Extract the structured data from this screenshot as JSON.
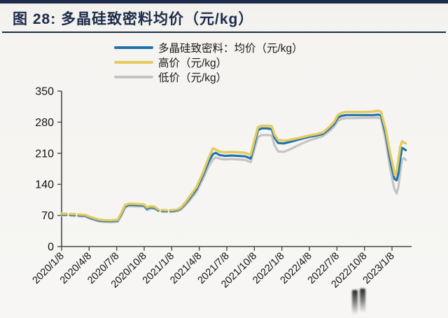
{
  "page": {
    "top_bar_color": "#1c2b4a",
    "background": "#f4f3f0"
  },
  "header": {
    "title": "图 28: 多晶硅致密料均价（元/kg）",
    "title_color": "#1c2b4a",
    "divider_color": "#1c2b4a"
  },
  "legend": {
    "items": [
      {
        "label": "多晶硅致密料：均价（元/kg）",
        "color": "#2273aa",
        "key": "avg"
      },
      {
        "label": "高价（元/kg）",
        "color": "#e3cb5e",
        "key": "high"
      },
      {
        "label": "低价（元/kg）",
        "color": "#c4c4c4",
        "key": "low"
      }
    ]
  },
  "chart_data": {
    "type": "line",
    "title": "多晶硅致密料均价（元/kg）",
    "ylabel": "",
    "xlabel": "",
    "ylim": [
      0,
      350
    ],
    "yticks": [
      0,
      70,
      140,
      210,
      280,
      350
    ],
    "xtick_labels": [
      "2020/1/8",
      "2020/4/8",
      "2020/7/8",
      "2020/10/8",
      "2021/1/8",
      "2021/4/8",
      "2021/7/8",
      "2021/10/8",
      "2022/1/8",
      "2022/4/8",
      "2022/7/8",
      "2022/10/8",
      "2023/1/8"
    ],
    "x_unit": "months since 2020/1/8, one tick every 3 months",
    "grid": false,
    "legend_position": "top",
    "axis_color": "#4a4a4a",
    "tick_label_color": "#111111",
    "dashed_ranges": [
      [
        0,
        2.6
      ],
      [
        10.1,
        12.6
      ]
    ],
    "x_months": [
      0.0,
      0.7,
      1.4,
      2.1,
      2.6,
      3.2,
      4.0,
      4.6,
      5.4,
      6.1,
      6.5,
      6.9,
      7.3,
      8.0,
      8.8,
      9.0,
      9.3,
      9.6,
      10.1,
      10.6,
      11.2,
      12.0,
      12.6,
      13.0,
      13.5,
      14.0,
      14.7,
      15.4,
      16.0,
      16.5,
      16.8,
      17.2,
      17.8,
      18.5,
      19.3,
      20.0,
      20.6,
      21.0,
      21.4,
      21.8,
      22.4,
      22.9,
      23.2,
      23.6,
      24.2,
      24.8,
      25.5,
      26.2,
      27.0,
      27.8,
      28.5,
      29.0,
      29.4,
      29.7,
      30.1,
      30.5,
      31.0,
      32.0,
      33.0,
      34.0,
      34.5,
      34.8,
      35.3,
      35.8,
      36.2,
      36.3,
      36.5,
      36.7,
      36.9,
      37.1,
      37.3,
      37.5
    ],
    "series": [
      {
        "name": "低价（元/kg）",
        "key": "low",
        "color": "#c4c4c4",
        "width": 3.2,
        "values": [
          70,
          70,
          69,
          68,
          67,
          62,
          57,
          55.5,
          55,
          56,
          69,
          87,
          91,
          90.5,
          90,
          89.5,
          82,
          85,
          85,
          79,
          78,
          78,
          79.5,
          83,
          93,
          105,
          123,
          152,
          180,
          196,
          201,
          198,
          196,
          197,
          196,
          195,
          190,
          218,
          246,
          251,
          251,
          250,
          228,
          214,
          213,
          218,
          225,
          232,
          239,
          244,
          249,
          257,
          264,
          270,
          283,
          287,
          289,
          289,
          290,
          290,
          290,
          288,
          240,
          175,
          135,
          128,
          119,
          135,
          168,
          196,
          199,
          195
        ]
      },
      {
        "name": "多晶硅致密料：均价（元/kg）",
        "key": "avg",
        "color": "#2273aa",
        "width": 3.2,
        "values": [
          72,
          72,
          71,
          70,
          69,
          64,
          59,
          57.5,
          57,
          58,
          72,
          90,
          94,
          93.5,
          92.5,
          92,
          85,
          88,
          87.5,
          81,
          80,
          80,
          81.5,
          86,
          97,
          110,
          129,
          160,
          190,
          208,
          211,
          206,
          204,
          205,
          204,
          203,
          198,
          230,
          262,
          266,
          266,
          264,
          245,
          233,
          232,
          235,
          239,
          243,
          247,
          250,
          254,
          262,
          270,
          276,
          290,
          294,
          296,
          296,
          296,
          296,
          297,
          295,
          255,
          195,
          158,
          152,
          149,
          165,
          198,
          222,
          220,
          217
        ]
      },
      {
        "name": "高价（元/kg）",
        "key": "high",
        "color": "#e3cb5e",
        "width": 3.4,
        "values": [
          74,
          74,
          73,
          72,
          71,
          66,
          61,
          59.5,
          59,
          60,
          75,
          93,
          96.5,
          96,
          95,
          94.5,
          88,
          90.5,
          90,
          83,
          82,
          82,
          83.5,
          88,
          100,
          114,
          134,
          166,
          199,
          221,
          218,
          214,
          212,
          213,
          212,
          211,
          206,
          238,
          269,
          272,
          272,
          271,
          252,
          240,
          238,
          240,
          243,
          246,
          250,
          253,
          257,
          266,
          274,
          281,
          296,
          301,
          303,
          303,
          303,
          304,
          306,
          303,
          265,
          210,
          172,
          161,
          168,
          195,
          225,
          237,
          234,
          232
        ]
      }
    ]
  },
  "watermark": {
    "description": "dark blurred smudge artifact near bottom right, below x-axis labels"
  }
}
